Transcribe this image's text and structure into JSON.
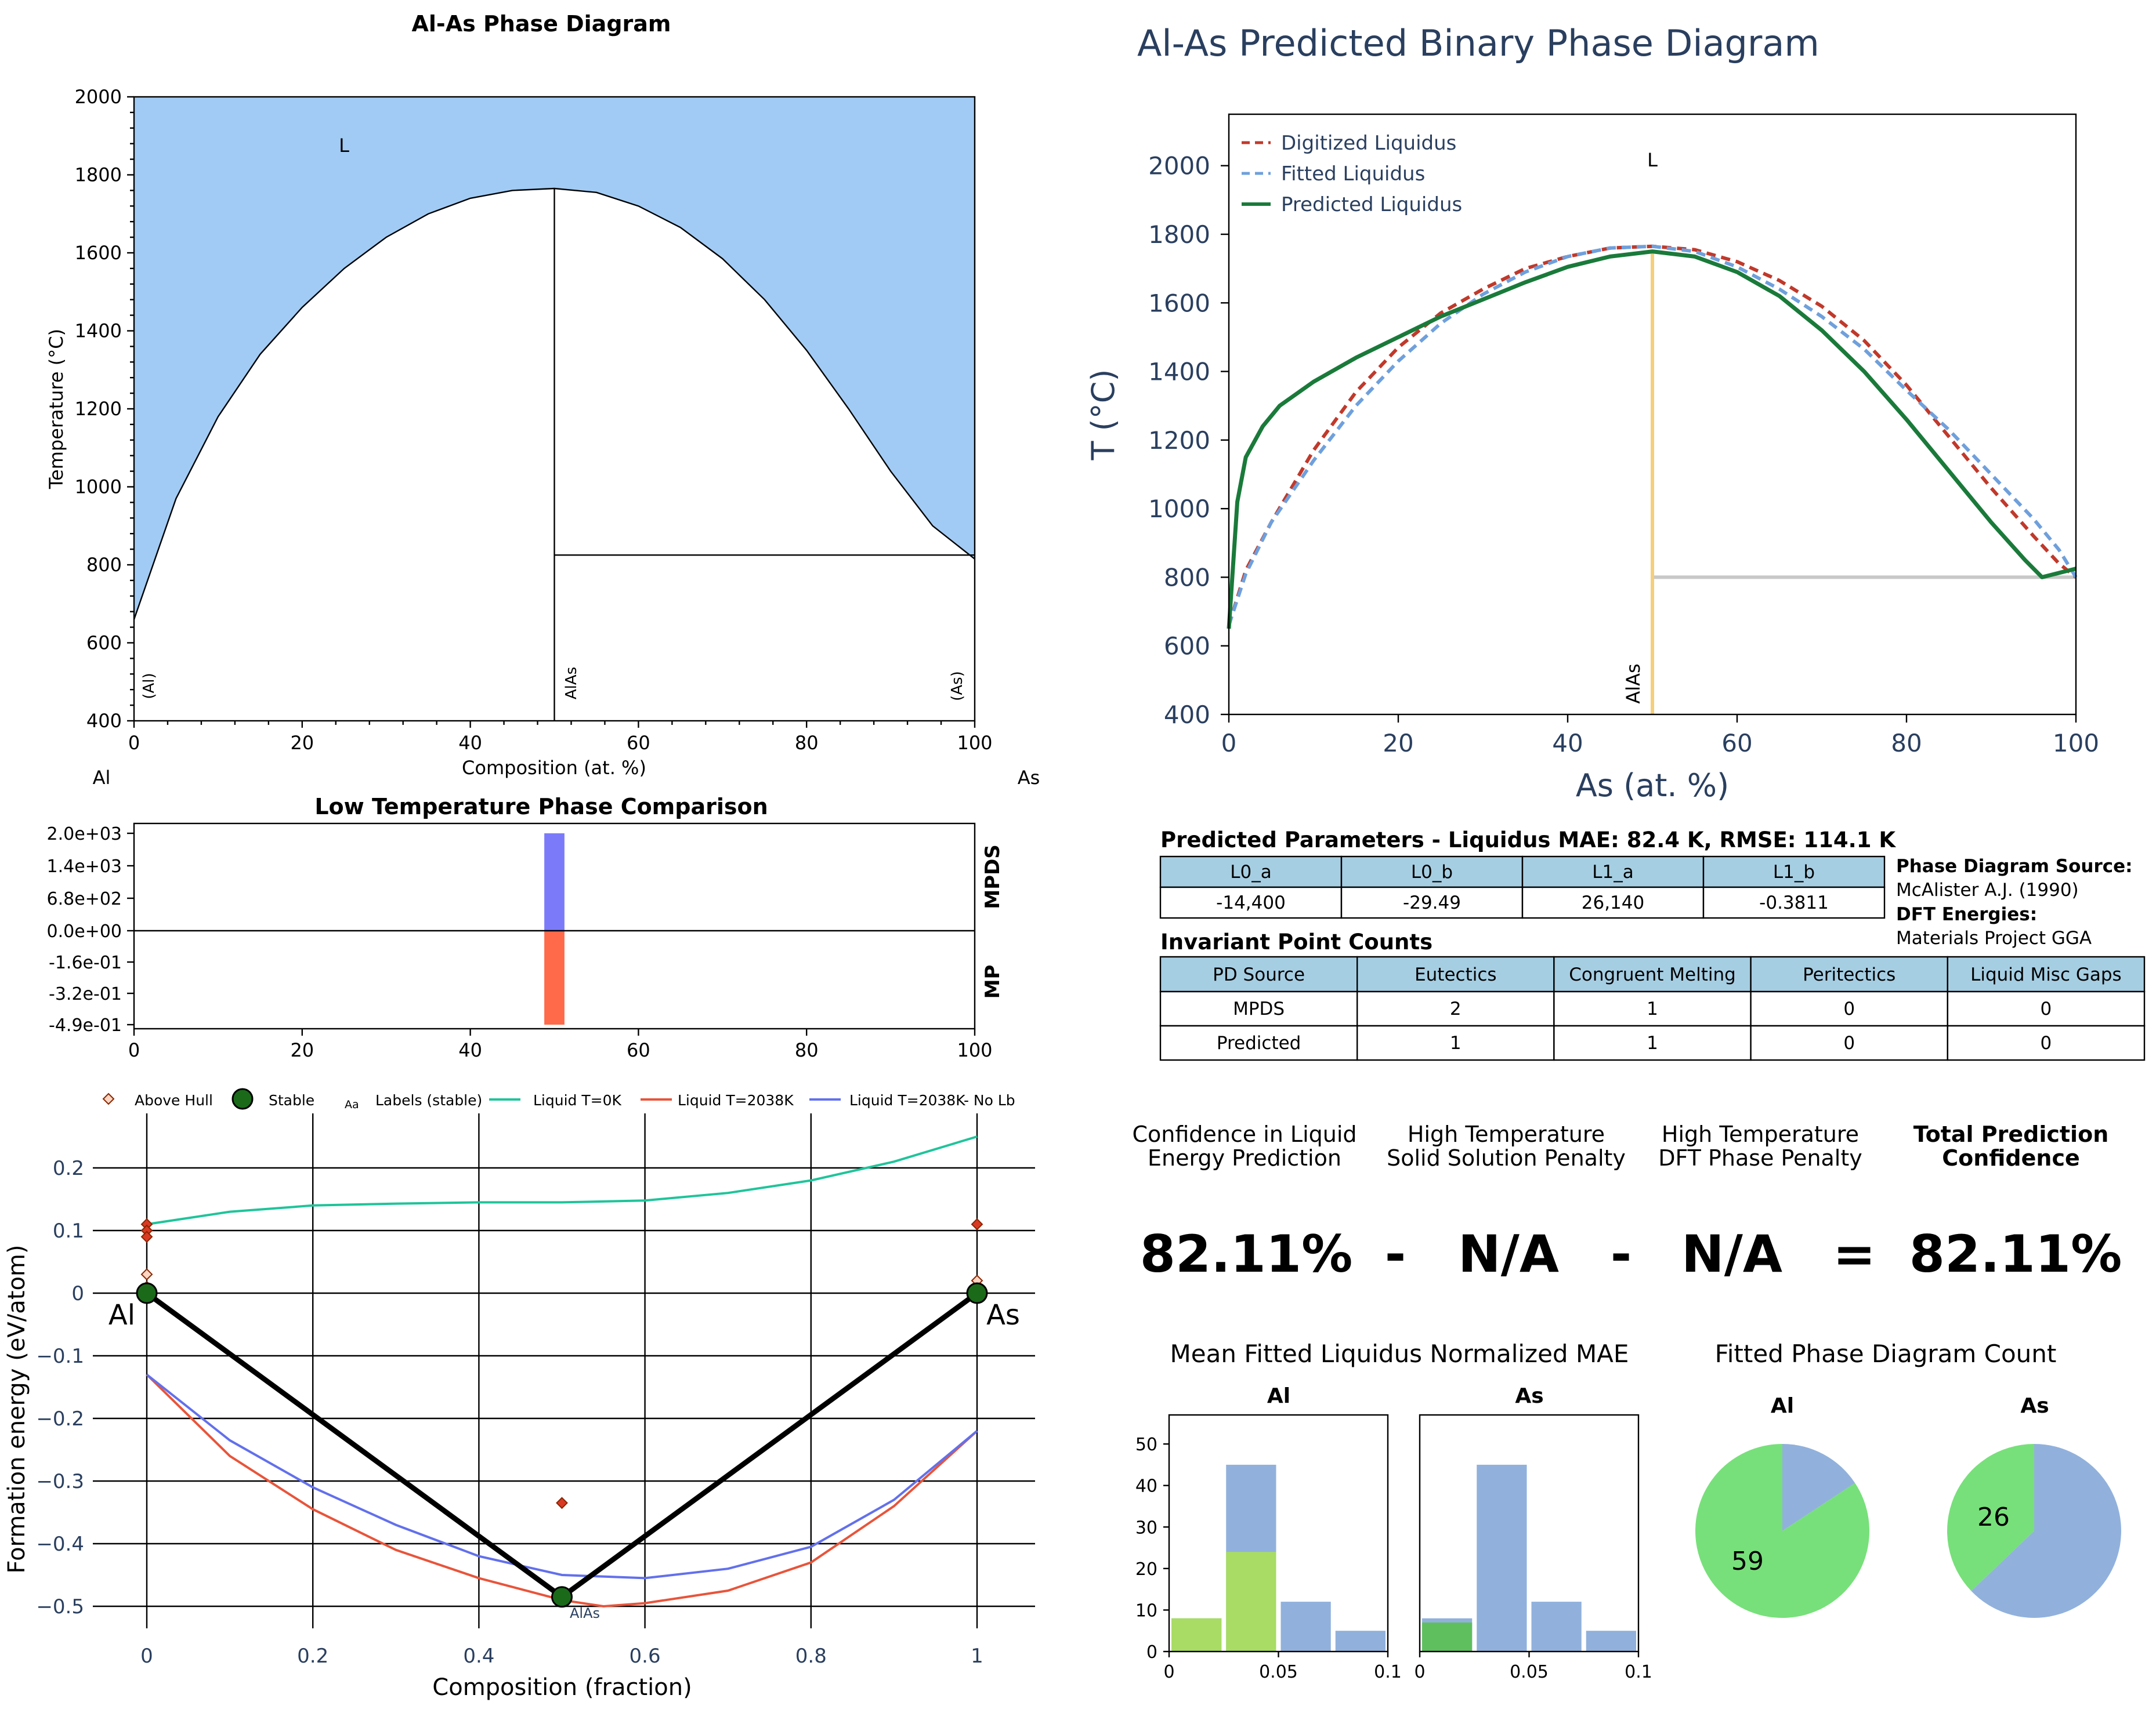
{
  "colors": {
    "liquid_fill": "#a1cbf4",
    "navy": "#2a3f5f",
    "digitized": "#c0392b",
    "fitted": "#6fa0dc",
    "predicted": "#1a7a3a",
    "alas_line": "#f5cf79",
    "eutectic_line": "#c8c8c8",
    "mpds_bar": "#7b7bfa",
    "mp_bar": "#ff6a4a",
    "liquid_0k": "#1fc49a",
    "liquid_2038k": "#e8543a",
    "liquid_2038k_nolb": "#6270ec",
    "hist_green": "#a8dc64",
    "hist_green_dark": "#5fbf5f",
    "hist_blue": "#91b1dc",
    "pie_green": "#77e07a",
    "pie_blue": "#91b1dc",
    "table_header": "#a6cee3"
  },
  "chart_data": [
    {
      "id": "phase_diagram",
      "type": "area",
      "title": "Al-As Phase Diagram",
      "xlabel": "Composition (at. %)",
      "ylabel": "Temperature (°C)",
      "xlim": [
        0,
        100
      ],
      "ylim": [
        400,
        2000
      ],
      "xticks": [
        "0",
        "20",
        "40",
        "60",
        "80",
        "100"
      ],
      "yticks": [
        "400",
        "600",
        "800",
        "1000",
        "1200",
        "1400",
        "1600",
        "1800",
        "2000"
      ],
      "left_element": "Al",
      "right_element": "As",
      "region_labels": [
        "L",
        "(Al)",
        "AlAs",
        "(As)"
      ],
      "liquidus": {
        "x": [
          0,
          5,
          10,
          15,
          20,
          25,
          30,
          35,
          40,
          45,
          50,
          55,
          60,
          65,
          70,
          75,
          80,
          85,
          90,
          95,
          100
        ],
        "y": [
          660,
          970,
          1180,
          1340,
          1460,
          1560,
          1640,
          1700,
          1740,
          1760,
          1765,
          1755,
          1720,
          1665,
          1585,
          1480,
          1350,
          1200,
          1040,
          900,
          815
        ]
      },
      "compound_x": 50,
      "compound_top": 1765,
      "eutectic_T": 825
    },
    {
      "id": "predicted_phase_diagram",
      "type": "line",
      "title": "Al-As Predicted Binary Phase Diagram",
      "xlabel": "As (at. %)",
      "ylabel": "T (°C)",
      "xlim": [
        0,
        100
      ],
      "ylim": [
        400,
        2150
      ],
      "xticks": [
        "0",
        "20",
        "40",
        "60",
        "80",
        "100"
      ],
      "yticks": [
        "400",
        "600",
        "800",
        "1000",
        "1200",
        "1400",
        "1600",
        "1800",
        "2000"
      ],
      "legend": [
        "Digitized Liquidus",
        "Fitted Liquidus",
        "Predicted Liquidus"
      ],
      "region_label": "L",
      "compound_label": "AlAs",
      "series": [
        {
          "name": "Digitized Liquidus",
          "x": [
            0,
            2,
            5,
            10,
            15,
            20,
            25,
            30,
            35,
            40,
            45,
            50,
            55,
            60,
            65,
            70,
            75,
            80,
            85,
            90,
            95,
            98,
            100
          ],
          "y": [
            660,
            820,
            960,
            1170,
            1340,
            1470,
            1570,
            1640,
            1700,
            1735,
            1760,
            1765,
            1755,
            1720,
            1665,
            1590,
            1490,
            1360,
            1210,
            1060,
            920,
            840,
            800
          ]
        },
        {
          "name": "Fitted Liquidus",
          "x": [
            0,
            2,
            5,
            10,
            15,
            20,
            25,
            30,
            35,
            40,
            45,
            50,
            55,
            60,
            65,
            70,
            75,
            80,
            85,
            90,
            95,
            98,
            100
          ],
          "y": [
            660,
            810,
            960,
            1140,
            1300,
            1430,
            1540,
            1625,
            1690,
            1735,
            1760,
            1765,
            1750,
            1705,
            1640,
            1560,
            1465,
            1345,
            1230,
            1100,
            970,
            880,
            800
          ]
        },
        {
          "name": "Predicted Liquidus",
          "x": [
            0,
            1,
            2,
            4,
            6,
            10,
            15,
            20,
            25,
            30,
            35,
            40,
            45,
            50,
            55,
            60,
            65,
            70,
            75,
            80,
            85,
            90,
            94,
            96,
            100
          ],
          "y": [
            650,
            1020,
            1150,
            1240,
            1300,
            1370,
            1440,
            1500,
            1560,
            1610,
            1660,
            1705,
            1735,
            1750,
            1735,
            1690,
            1620,
            1520,
            1400,
            1260,
            1110,
            960,
            850,
            800,
            825
          ]
        }
      ],
      "compound_x": 50,
      "compound_top": 1750,
      "eutectic": {
        "T": 800,
        "x_start": 50,
        "x_end": 100
      }
    },
    {
      "id": "low_temp_comparison",
      "type": "bar",
      "title": "Low Temperature Phase Comparison",
      "xlim": [
        0,
        100
      ],
      "xticks": [
        "0",
        "20",
        "40",
        "60",
        "80",
        "100"
      ],
      "yticks": [
        "2.0e+03",
        "1.4e+03",
        "6.8e+02",
        "0.0e+00",
        "-1.6e-01",
        "-3.2e-01",
        "-4.9e-01"
      ],
      "side_labels": [
        "MPDS",
        "MP"
      ],
      "series": [
        {
          "name": "MPDS",
          "x": [
            50
          ],
          "values": [
            2000
          ],
          "ylim": [
            0,
            2000
          ]
        },
        {
          "name": "MP",
          "x": [
            50
          ],
          "values": [
            -0.49
          ],
          "ylim": [
            -0.49,
            0
          ]
        }
      ]
    },
    {
      "id": "convex_hull",
      "type": "scatter",
      "xlabel": "Composition (fraction)",
      "ylabel": "Formation energy (eV/atom)",
      "xlim": [
        -0.05,
        1.07
      ],
      "ylim": [
        -0.52,
        0.27
      ],
      "xticks": [
        "0",
        "0.2",
        "0.4",
        "0.6",
        "0.8",
        "1"
      ],
      "yticks": [
        "0.2",
        "0.1",
        "0",
        "−0.1",
        "−0.2",
        "−0.3",
        "−0.4",
        "−0.5"
      ],
      "legend": [
        "Above Hull",
        "Stable",
        "Labels (stable)",
        "Liquid T=0K",
        "Liquid T=2038K",
        "Liquid T=2038K- No Lb"
      ],
      "legend_label_glyph": "Aa",
      "point_labels": [
        "Al",
        "As",
        "AlAs"
      ],
      "hull": {
        "x": [
          0,
          0.5,
          1
        ],
        "y": [
          0,
          -0.485,
          0
        ]
      },
      "stable": {
        "x": [
          0,
          0.5,
          1
        ],
        "y": [
          0,
          -0.485,
          0
        ]
      },
      "above_hull": {
        "x": [
          0,
          0,
          0,
          0,
          0,
          0.5,
          1,
          1,
          1
        ],
        "y": [
          0.11,
          0.1,
          0.09,
          0.03,
          0.01,
          -0.335,
          0.11,
          0.02,
          0.005
        ],
        "filled": [
          true,
          true,
          true,
          false,
          false,
          true,
          true,
          false,
          false
        ]
      },
      "series": [
        {
          "name": "Liquid T=0K",
          "x": [
            0,
            0.1,
            0.2,
            0.3,
            0.4,
            0.5,
            0.6,
            0.7,
            0.8,
            0.9,
            1
          ],
          "y": [
            0.11,
            0.13,
            0.14,
            0.143,
            0.145,
            0.145,
            0.148,
            0.16,
            0.18,
            0.21,
            0.25
          ]
        },
        {
          "name": "Liquid T=2038K",
          "x": [
            0,
            0.1,
            0.2,
            0.3,
            0.4,
            0.5,
            0.55,
            0.6,
            0.7,
            0.8,
            0.9,
            1
          ],
          "y": [
            -0.13,
            -0.26,
            -0.345,
            -0.41,
            -0.455,
            -0.49,
            -0.5,
            -0.495,
            -0.475,
            -0.43,
            -0.34,
            -0.22
          ]
        },
        {
          "name": "Liquid T=2038K- No Lb",
          "x": [
            0,
            0.1,
            0.2,
            0.3,
            0.4,
            0.5,
            0.6,
            0.7,
            0.8,
            0.9,
            1
          ],
          "y": [
            -0.13,
            -0.235,
            -0.31,
            -0.37,
            -0.42,
            -0.45,
            -0.455,
            -0.44,
            -0.405,
            -0.33,
            -0.22
          ]
        }
      ]
    },
    {
      "id": "hist_al",
      "type": "bar",
      "title": "Al",
      "xlim": [
        0,
        0.1
      ],
      "ylim": [
        0,
        57
      ],
      "xticks": [
        "0",
        "0.05",
        "0.1"
      ],
      "yticks": [
        "0",
        "10",
        "20",
        "30",
        "40",
        "50"
      ],
      "bins": [
        [
          0,
          0.025
        ],
        [
          0.025,
          0.05
        ],
        [
          0.05,
          0.075
        ],
        [
          0.075,
          0.1
        ]
      ],
      "series": [
        {
          "name": "all",
          "values": [
            8,
            45,
            12,
            5
          ]
        },
        {
          "name": "element",
          "values": [
            8,
            24,
            0,
            0
          ]
        }
      ]
    },
    {
      "id": "hist_as",
      "type": "bar",
      "title": "As",
      "xlim": [
        0,
        0.1
      ],
      "ylim": [
        0,
        57
      ],
      "xticks": [
        "0",
        "0.05",
        "0.1"
      ],
      "bins": [
        [
          0,
          0.025
        ],
        [
          0.025,
          0.05
        ],
        [
          0.05,
          0.075
        ],
        [
          0.075,
          0.1
        ]
      ],
      "series": [
        {
          "name": "all",
          "values": [
            8,
            45,
            12,
            5
          ]
        },
        {
          "name": "element",
          "values": [
            7,
            0,
            0,
            0
          ]
        }
      ]
    },
    {
      "id": "pie_al",
      "type": "pie",
      "title": "Al",
      "values": [
        59,
        11
      ],
      "labels": [
        "59",
        ""
      ]
    },
    {
      "id": "pie_as",
      "type": "pie",
      "title": "As",
      "values": [
        26,
        44
      ],
      "labels": [
        "26",
        ""
      ]
    }
  ],
  "params_table": {
    "title": "Predicted Parameters - Liquidus MAE: 82.4 K, RMSE: 114.1 K",
    "headers": [
      "L0_a",
      "L0_b",
      "L1_a",
      "L1_b"
    ],
    "values": [
      "-14,400",
      "-29.49",
      "26,140",
      "-0.3811"
    ]
  },
  "source_info": {
    "pd_source_label": "Phase Diagram Source:",
    "pd_source_value": "McAlister A.J. (1990)",
    "dft_label": "DFT Energies:",
    "dft_value": "Materials Project GGA"
  },
  "invariant_table": {
    "title": "Invariant Point Counts",
    "headers": [
      "PD Source",
      "Eutectics",
      "Congruent Melting",
      "Peritectics",
      "Liquid Misc Gaps"
    ],
    "rows": [
      [
        "MPDS",
        "2",
        "1",
        "0",
        "0"
      ],
      [
        "Predicted",
        "1",
        "1",
        "0",
        "0"
      ]
    ]
  },
  "confidence": {
    "h1_line1": "Confidence in Liquid",
    "h1_line2": "Energy Prediction",
    "h2_line1": "High Temperature",
    "h2_line2": "Solid Solution Penalty",
    "h3_line1": "High Temperature",
    "h3_line2": "DFT Phase Penalty",
    "h4_line1": "Total Prediction",
    "h4_line2": "Confidence",
    "v1": "82.11%",
    "op1": "-",
    "v2": "N/A",
    "op2": "-",
    "v3": "N/A",
    "op3": "=",
    "v4": "82.11%"
  },
  "bottom_titles": {
    "mae": "Mean Fitted Liquidus Normalized MAE",
    "count": "Fitted Phase Diagram Count"
  }
}
